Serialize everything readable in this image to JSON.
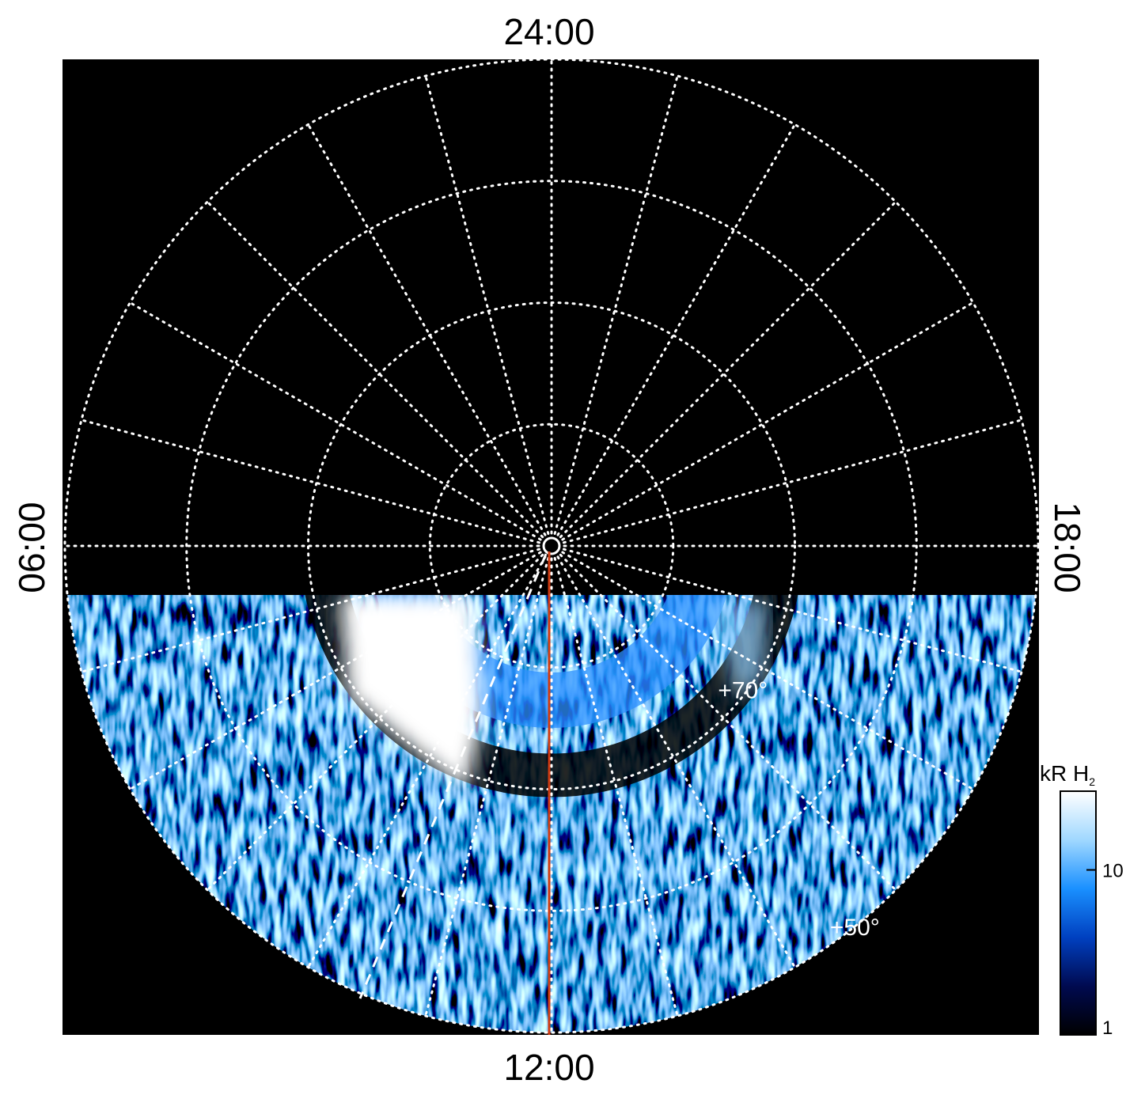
{
  "chart_data": {
    "type": "polar",
    "local_time_labels": {
      "top": "24:00",
      "bottom": "12:00",
      "left": "06:00",
      "right": "18:00"
    },
    "lat_lim": [
      90,
      50
    ],
    "lat_grid": [
      80,
      70,
      60,
      50
    ],
    "lat_labels": [
      {
        "value": 70,
        "label": "+70°"
      },
      {
        "value": 50,
        "label": "+50°"
      }
    ],
    "colorbar": {
      "title": "kR H",
      "title_subscript": "2",
      "log": true,
      "ylim": [
        1,
        30
      ],
      "yticks": [
        1,
        10
      ],
      "colors": [
        "#000000",
        "#000a50",
        "#0040c0",
        "#1a90ff",
        "#a0d8ff",
        "#ffffff"
      ]
    }
  }
}
